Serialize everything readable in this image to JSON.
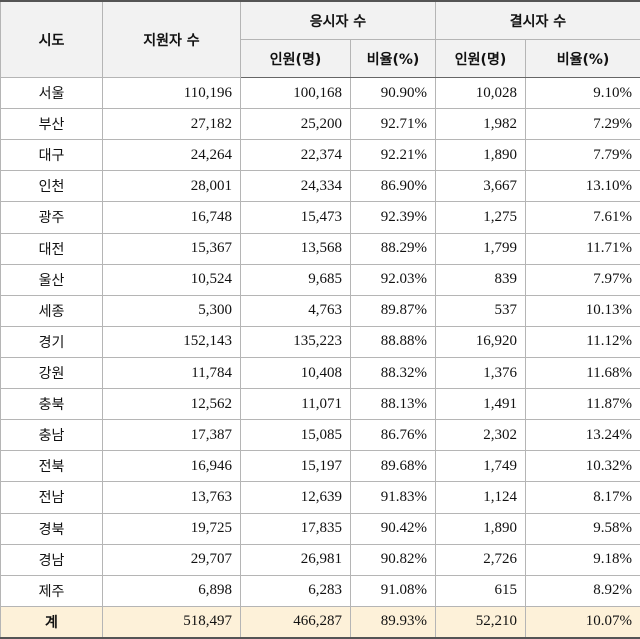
{
  "header": {
    "row1": [
      "시도",
      "지원자 수",
      "응시자 수",
      "결시자 수"
    ],
    "row2": [
      "인원(명)",
      "비율(%)",
      "인원(명)",
      "비율(%)"
    ]
  },
  "table": {
    "rows": [
      [
        "서울",
        "110,196",
        "100,168",
        "90.90%",
        "10,028",
        "9.10%"
      ],
      [
        "부산",
        "27,182",
        "25,200",
        "92.71%",
        "1,982",
        "7.29%"
      ],
      [
        "대구",
        "24,264",
        "22,374",
        "92.21%",
        "1,890",
        "7.79%"
      ],
      [
        "인천",
        "28,001",
        "24,334",
        "86.90%",
        "3,667",
        "13.10%"
      ],
      [
        "광주",
        "16,748",
        "15,473",
        "92.39%",
        "1,275",
        "7.61%"
      ],
      [
        "대전",
        "15,367",
        "13,568",
        "88.29%",
        "1,799",
        "11.71%"
      ],
      [
        "울산",
        "10,524",
        "9,685",
        "92.03%",
        "839",
        "7.97%"
      ],
      [
        "세종",
        "5,300",
        "4,763",
        "89.87%",
        "537",
        "10.13%"
      ],
      [
        "경기",
        "152,143",
        "135,223",
        "88.88%",
        "16,920",
        "11.12%"
      ],
      [
        "강원",
        "11,784",
        "10,408",
        "88.32%",
        "1,376",
        "11.68%"
      ],
      [
        "충북",
        "12,562",
        "11,071",
        "88.13%",
        "1,491",
        "11.87%"
      ],
      [
        "충남",
        "17,387",
        "15,085",
        "86.76%",
        "2,302",
        "13.24%"
      ],
      [
        "전북",
        "16,946",
        "15,197",
        "89.68%",
        "1,749",
        "10.32%"
      ],
      [
        "전남",
        "13,763",
        "12,639",
        "91.83%",
        "1,124",
        "8.17%"
      ],
      [
        "경북",
        "19,725",
        "17,835",
        "90.42%",
        "1,890",
        "9.58%"
      ],
      [
        "경남",
        "29,707",
        "26,981",
        "90.82%",
        "2,726",
        "9.18%"
      ],
      [
        "제주",
        "6,898",
        "6,283",
        "91.08%",
        "615",
        "8.92%"
      ]
    ],
    "total": [
      "계",
      "518,497",
      "466,287",
      "89.93%",
      "52,210",
      "10.07%"
    ]
  }
}
